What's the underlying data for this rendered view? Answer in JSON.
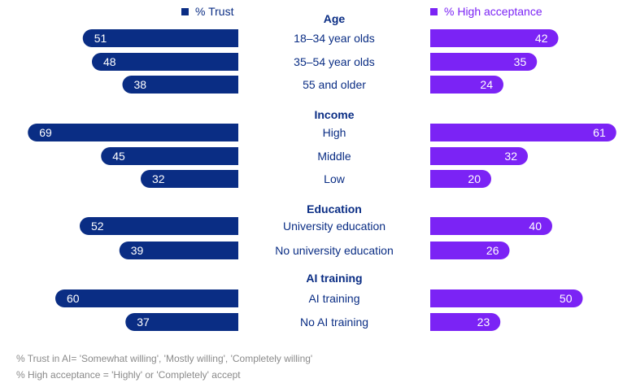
{
  "chart_data": {
    "type": "bar",
    "legend": {
      "left": {
        "label": "% Trust",
        "color": "#0a2d84"
      },
      "right": {
        "label": "% High acceptance",
        "color": "#7b23f5"
      }
    },
    "groups": [
      {
        "title": "Age",
        "rows": [
          {
            "label": "18–34 year olds",
            "trust": 51,
            "acceptance": 42
          },
          {
            "label": "35–54 year olds",
            "trust": 48,
            "acceptance": 35
          },
          {
            "label": "55 and older",
            "trust": 38,
            "acceptance": 24
          }
        ]
      },
      {
        "title": "Income",
        "rows": [
          {
            "label": "High",
            "trust": 69,
            "acceptance": 61
          },
          {
            "label": "Middle",
            "trust": 45,
            "acceptance": 32
          },
          {
            "label": "Low",
            "trust": 32,
            "acceptance": 20
          }
        ]
      },
      {
        "title": "Education",
        "rows": [
          {
            "label": "University education",
            "trust": 52,
            "acceptance": 40
          },
          {
            "label": "No university education",
            "trust": 39,
            "acceptance": 26
          }
        ]
      },
      {
        "title": "AI training",
        "rows": [
          {
            "label": "AI training",
            "trust": 60,
            "acceptance": 50
          },
          {
            "label": "No AI training",
            "trust": 37,
            "acceptance": 23
          }
        ]
      }
    ]
  },
  "footnotes": [
    "% Trust in AI= 'Somewhat willing', 'Mostly willing', 'Completely willing'",
    "% High acceptance = 'Highly' or 'Completely' accept"
  ]
}
